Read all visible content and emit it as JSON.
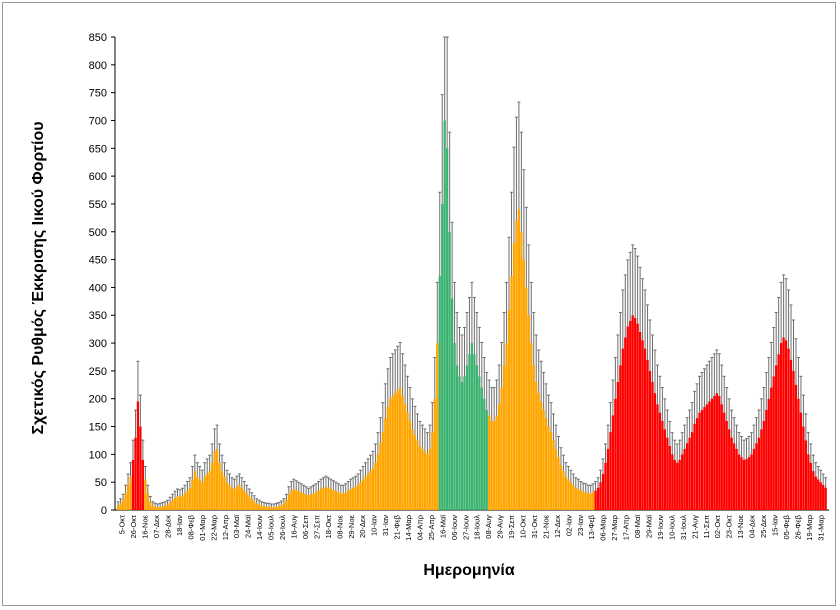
{
  "chart_data": {
    "type": "bar",
    "title": "",
    "xlabel": "Ημερομηνία",
    "ylabel": "Σχετικός Ρυθμός Έκκρισης Ιικού Φορτίου",
    "ylim": [
      0,
      850
    ],
    "yticks": [
      0,
      50,
      100,
      150,
      200,
      250,
      300,
      350,
      400,
      450,
      500,
      550,
      600,
      650,
      700,
      750,
      800,
      850
    ],
    "grid": false,
    "legend": "none",
    "colors": {
      "red": "#ff0000",
      "orange": "#ffa500",
      "green": "#3cb371",
      "error": "#6e6e6e"
    },
    "x_tick_labels": [
      "5-Οκτ",
      "26-Οκτ",
      "16-Νοε",
      "07-Δεκ",
      "28-Δεκ",
      "18-Ιαν",
      "08-Φεβ",
      "01-Μαρ",
      "22-Μαρ",
      "12-Απρ",
      "03-Μαϊ",
      "24-Μαϊ",
      "14-Ιουν",
      "05-Ιουλ",
      "26-Ιουλ",
      "16-Αυγ",
      "06-Σεπ",
      "27-Σεπ",
      "18-Οκτ",
      "08-Νοε",
      "29-Νοε",
      "20-Δεκ",
      "10-Ιαν",
      "31-Ιαν",
      "21-Φεβ",
      "14-Μαρ",
      "04-Απρ",
      "25-Απρ",
      "16-Μαϊ",
      "06-Ιουν",
      "27-Ιουν",
      "18-Ιουλ",
      "08-Αυγ",
      "29-Αυγ",
      "19-Σεπ",
      "10-Οκτ",
      "31-Οκτ",
      "21-Νοε",
      "12-Δεκ",
      "02-Ιαν",
      "23-Ιαν",
      "13-Φεβ",
      "06-Μαρ",
      "27-Μαρ",
      "17-Απρ",
      "08-Μαϊ",
      "29-Μαϊ",
      "19-Ιουν",
      "10-Ιουλ",
      "31-Ιουλ",
      "21-Αυγ",
      "11-Σεπ",
      "02-Οκτ",
      "23-Οκτ",
      "13-Νοε",
      "04-Δεκ",
      "25-Δεκ",
      "15-Ιαν",
      "05-Φεβ",
      "26-Φεβ",
      "19-Μαρ",
      "31-Μαρ"
    ],
    "series": [
      {
        "values": [
          8,
          12,
          18,
          30,
          45,
          60,
          90,
          130,
          195,
          150,
          90,
          55,
          30,
          15,
          8,
          6,
          5,
          6,
          7,
          8,
          10,
          14,
          18,
          22,
          25,
          24,
          26,
          30,
          35,
          40,
          55,
          70,
          60,
          55,
          50,
          60,
          65,
          70,
          85,
          105,
          110,
          85,
          70,
          60,
          50,
          45,
          40,
          38,
          42,
          45,
          40,
          35,
          30,
          25,
          20,
          16,
          12,
          10,
          8,
          7,
          6,
          6,
          5,
          5,
          6,
          7,
          9,
          12,
          18,
          28,
          35,
          38,
          36,
          34,
          32,
          30,
          28,
          26,
          28,
          30,
          32,
          35,
          38,
          40,
          42,
          40,
          38,
          36,
          34,
          32,
          30,
          30,
          32,
          35,
          38,
          40,
          42,
          45,
          50,
          55,
          60,
          65,
          70,
          75,
          85,
          100,
          120,
          140,
          165,
          185,
          200,
          205,
          210,
          215,
          220,
          205,
          190,
          175,
          160,
          145,
          135,
          125,
          115,
          110,
          105,
          100,
          110,
          140,
          200,
          300,
          420,
          550,
          700,
          650,
          500,
          380,
          300,
          260,
          240,
          230,
          240,
          260,
          280,
          300,
          280,
          260,
          240,
          220,
          200,
          180,
          170,
          160,
          160,
          170,
          190,
          220,
          260,
          300,
          360,
          420,
          480,
          520,
          540,
          500,
          450,
          400,
          350,
          300,
          260,
          230,
          210,
          195,
          180,
          165,
          150,
          140,
          125,
          110,
          95,
          80,
          70,
          60,
          55,
          50,
          45,
          40,
          38,
          35,
          33,
          32,
          30,
          30,
          32,
          35,
          40,
          50,
          65,
          85,
          110,
          140,
          170,
          200,
          230,
          260,
          290,
          310,
          330,
          340,
          350,
          345,
          335,
          320,
          305,
          290,
          270,
          250,
          230,
          210,
          190,
          175,
          160,
          145,
          130,
          115,
          100,
          90,
          85,
          90,
          100,
          110,
          120,
          130,
          140,
          155,
          165,
          175,
          180,
          185,
          190,
          195,
          200,
          205,
          210,
          205,
          190,
          175,
          160,
          145,
          130,
          120,
          110,
          100,
          95,
          90,
          92,
          95,
          100,
          110,
          120,
          130,
          145,
          160,
          180,
          200,
          220,
          240,
          260,
          280,
          300,
          310,
          305,
          290,
          270,
          250,
          225,
          200,
          175,
          150,
          125,
          100,
          85,
          70,
          60,
          55,
          50,
          45,
          40
        ],
        "color_by_index": "red-orange-green by period"
      }
    ]
  }
}
